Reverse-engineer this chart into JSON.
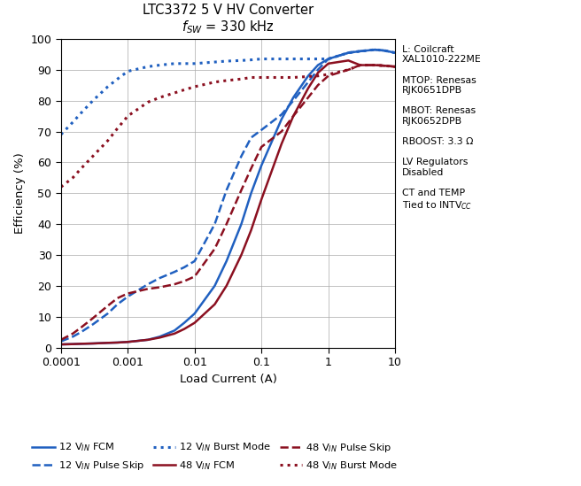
{
  "title_line1": "LTC3372 5 V HV Converter",
  "title_line2": "$f_{SW}$ = 330 kHz",
  "xlabel": "Load Current (A)",
  "ylabel": "Efficiency (%)",
  "xlim": [
    0.0001,
    10
  ],
  "ylim": [
    0,
    100
  ],
  "blue_color": "#2060C0",
  "red_color": "#8B1020",
  "curves": {
    "12V_FCM": {
      "x": [
        0.0001,
        0.00015,
        0.0002,
        0.0003,
        0.0005,
        0.0007,
        0.001,
        0.002,
        0.003,
        0.005,
        0.007,
        0.01,
        0.02,
        0.03,
        0.05,
        0.07,
        0.1,
        0.2,
        0.3,
        0.5,
        0.7,
        1.0,
        2.0,
        3.0,
        5.0,
        7.0,
        10.0
      ],
      "y": [
        1.0,
        1.1,
        1.2,
        1.3,
        1.5,
        1.6,
        1.8,
        2.5,
        3.5,
        5.5,
        8.0,
        11.0,
        20.0,
        28.0,
        40.0,
        50.0,
        59.0,
        74.0,
        81.0,
        88.0,
        91.5,
        93.5,
        95.5,
        96.0,
        96.5,
        96.2,
        95.5
      ],
      "color": "#2060C0",
      "linestyle": "solid",
      "linewidth": 1.8
    },
    "12V_PulseSkip": {
      "x": [
        0.0001,
        0.00015,
        0.0002,
        0.0003,
        0.0005,
        0.0007,
        0.001,
        0.002,
        0.003,
        0.005,
        0.007,
        0.01,
        0.02,
        0.03,
        0.05,
        0.07,
        0.1,
        0.2,
        0.3,
        0.5,
        0.7,
        1.0,
        2.0,
        3.0,
        5.0,
        7.0,
        10.0
      ],
      "y": [
        2.0,
        3.5,
        5.0,
        7.5,
        11.0,
        14.0,
        16.5,
        20.5,
        22.5,
        24.5,
        26.0,
        28.0,
        40.0,
        51.0,
        62.0,
        68.0,
        70.5,
        75.5,
        80.0,
        86.0,
        90.0,
        93.5,
        95.5,
        96.0,
        96.5,
        96.2,
        95.5
      ],
      "color": "#2060C0",
      "linestyle": "dashed",
      "linewidth": 1.8
    },
    "12V_Burst": {
      "x": [
        0.0001,
        0.00015,
        0.0002,
        0.0003,
        0.0005,
        0.0007,
        0.001,
        0.002,
        0.003,
        0.005,
        0.007,
        0.01,
        0.02,
        0.03,
        0.05,
        0.07,
        0.1,
        0.2,
        0.3,
        0.5,
        0.7,
        1.0,
        2.0,
        3.0,
        5.0,
        7.0,
        10.0
      ],
      "y": [
        69.0,
        73.0,
        76.0,
        80.0,
        84.5,
        87.0,
        89.5,
        91.0,
        91.5,
        92.0,
        92.0,
        92.0,
        92.5,
        92.8,
        93.0,
        93.2,
        93.5,
        93.5,
        93.5,
        93.5,
        93.5,
        93.5,
        95.5,
        96.0,
        96.5,
        96.2,
        95.5
      ],
      "color": "#2060C0",
      "linestyle": "dotted",
      "linewidth": 2.2
    },
    "48V_FCM": {
      "x": [
        0.0001,
        0.00015,
        0.0002,
        0.0003,
        0.0005,
        0.0007,
        0.001,
        0.002,
        0.003,
        0.005,
        0.007,
        0.01,
        0.02,
        0.03,
        0.05,
        0.07,
        0.1,
        0.2,
        0.3,
        0.5,
        0.7,
        1.0,
        2.0,
        3.0,
        5.0,
        7.0,
        10.0
      ],
      "y": [
        1.0,
        1.1,
        1.2,
        1.3,
        1.5,
        1.6,
        1.8,
        2.5,
        3.2,
        4.5,
        6.0,
        8.0,
        14.0,
        20.0,
        30.0,
        38.0,
        48.0,
        66.0,
        75.0,
        84.0,
        89.0,
        92.0,
        93.0,
        91.5,
        91.5,
        91.3,
        91.0
      ],
      "color": "#8B1020",
      "linestyle": "solid",
      "linewidth": 1.8
    },
    "48V_PulseSkip": {
      "x": [
        0.0001,
        0.00015,
        0.0002,
        0.0003,
        0.0005,
        0.0007,
        0.001,
        0.002,
        0.003,
        0.005,
        0.007,
        0.01,
        0.02,
        0.03,
        0.05,
        0.07,
        0.1,
        0.2,
        0.3,
        0.5,
        0.7,
        1.0,
        2.0,
        3.0,
        5.0,
        7.0,
        10.0
      ],
      "y": [
        2.5,
        4.5,
        6.5,
        9.5,
        13.5,
        16.0,
        17.5,
        19.0,
        19.5,
        20.5,
        21.5,
        23.0,
        32.0,
        40.0,
        51.0,
        58.0,
        65.0,
        70.0,
        75.0,
        81.0,
        85.0,
        88.0,
        90.0,
        91.5,
        91.5,
        91.3,
        91.0
      ],
      "color": "#8B1020",
      "linestyle": "dashed",
      "linewidth": 1.8
    },
    "48V_Burst": {
      "x": [
        0.0001,
        0.00015,
        0.0002,
        0.0003,
        0.0005,
        0.0007,
        0.001,
        0.002,
        0.003,
        0.005,
        0.007,
        0.01,
        0.02,
        0.03,
        0.05,
        0.07,
        0.1,
        0.2,
        0.3,
        0.5,
        0.7,
        1.0,
        2.0,
        3.0,
        5.0,
        7.0,
        10.0
      ],
      "y": [
        52.0,
        55.0,
        58.0,
        62.0,
        67.0,
        71.0,
        75.0,
        79.5,
        81.0,
        82.5,
        83.5,
        84.5,
        86.0,
        86.5,
        87.0,
        87.5,
        87.5,
        87.5,
        87.5,
        87.8,
        88.0,
        88.5,
        90.0,
        91.5,
        91.5,
        91.3,
        91.0
      ],
      "color": "#8B1020",
      "linestyle": "dotted",
      "linewidth": 2.2
    }
  },
  "legend_entries_row1": [
    {
      "label": "12 V$_{IN}$ FCM",
      "color": "#2060C0",
      "linestyle": "solid"
    },
    {
      "label": "12 V$_{IN}$ Pulse Skip",
      "color": "#2060C0",
      "linestyle": "dashed"
    },
    {
      "label": "12 V$_{IN}$ Burst Mode",
      "color": "#2060C0",
      "linestyle": "dotted"
    }
  ],
  "legend_entries_row2": [
    {
      "label": "48 V$_{IN}$ FCM",
      "color": "#8B1020",
      "linestyle": "solid"
    },
    {
      "label": "48 V$_{IN}$ Pulse Skip",
      "color": "#8B1020",
      "linestyle": "dashed"
    },
    {
      "label": "48 V$_{IN}$ Burst Mode",
      "color": "#8B1020",
      "linestyle": "dotted"
    }
  ]
}
